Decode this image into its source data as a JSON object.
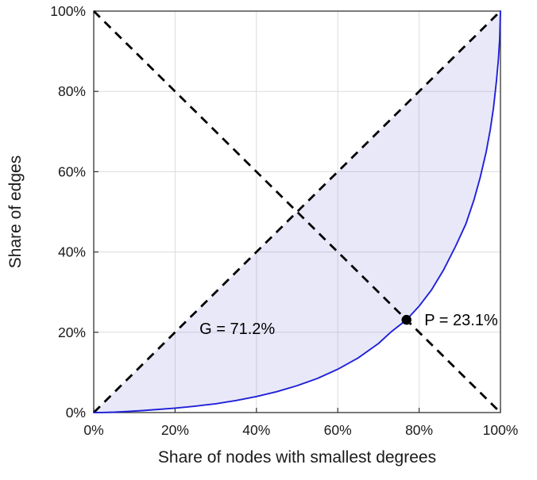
{
  "chart_data": {
    "type": "line",
    "title": "",
    "xlabel": "Share of nodes with smallest degrees",
    "ylabel": "Share of edges",
    "xlim": [
      0,
      100
    ],
    "ylim": [
      0,
      100
    ],
    "grid": true,
    "legend_position": "none",
    "xticks": {
      "values": [
        0,
        20,
        40,
        60,
        80,
        100
      ],
      "labels": [
        "0%",
        "20%",
        "40%",
        "60%",
        "80%",
        "100%"
      ]
    },
    "yticks": {
      "values": [
        0,
        20,
        40,
        60,
        80,
        100
      ],
      "labels": [
        "0%",
        "20%",
        "40%",
        "60%",
        "80%",
        "100%"
      ]
    },
    "series": [
      {
        "name": "equality-diagonal",
        "kind": "reference-line",
        "style": "dashed",
        "color": "#000000",
        "x": [
          0,
          100
        ],
        "y": [
          0,
          100
        ]
      },
      {
        "name": "anti-diagonal",
        "kind": "reference-line",
        "style": "dashed",
        "color": "#000000",
        "x": [
          0,
          100
        ],
        "y": [
          100,
          0
        ]
      },
      {
        "name": "lorenz-curve",
        "kind": "line",
        "style": "solid",
        "color": "#2121d9",
        "x": [
          0,
          2,
          5,
          8,
          12,
          16,
          20,
          25,
          30,
          35,
          40,
          45,
          50,
          55,
          60,
          65,
          70,
          73,
          76.9,
          80,
          83,
          86,
          89,
          91.5,
          93.5,
          95,
          96.5,
          97.5,
          98.3,
          99,
          99.5,
          99.8,
          100
        ],
        "y": [
          0,
          0.02,
          0.1,
          0.25,
          0.5,
          0.8,
          1.1,
          1.6,
          2.2,
          3.0,
          4.0,
          5.2,
          6.7,
          8.5,
          10.8,
          13.6,
          17.2,
          20.0,
          23.1,
          26.5,
          30.5,
          35.5,
          41.5,
          47,
          53,
          58.5,
          65,
          70.5,
          76,
          82.5,
          88,
          93,
          100
        ]
      }
    ],
    "fill_between": {
      "upper": "equality-diagonal",
      "lower": "lorenz-curve",
      "color": "#6e6edc",
      "opacity": 0.16
    },
    "marker_point": {
      "x": 76.9,
      "y": 23.1,
      "color": "#000000",
      "radius": 6.2
    },
    "annotations": [
      {
        "id": "gini-annotation",
        "text": "G = 71.2%",
        "x": 26,
        "y": 19.6,
        "anchor": "start",
        "font_size": 20
      },
      {
        "id": "p-annotation",
        "text": "P = 23.1%",
        "x": 81.3,
        "y": 21.7,
        "anchor": "start",
        "font_size": 20
      }
    ],
    "gini_coefficient_pct": 71.2,
    "p_value_pct": 23.1,
    "colors": {
      "grid": "#dcdcdc",
      "axis_box": "#333333",
      "tick_text": "#1a1a1a",
      "label_text": "#1a1a1a",
      "curve": "#2121d9",
      "fill": "#6e6edc",
      "dashed": "#000000",
      "background": "#ffffff"
    }
  }
}
